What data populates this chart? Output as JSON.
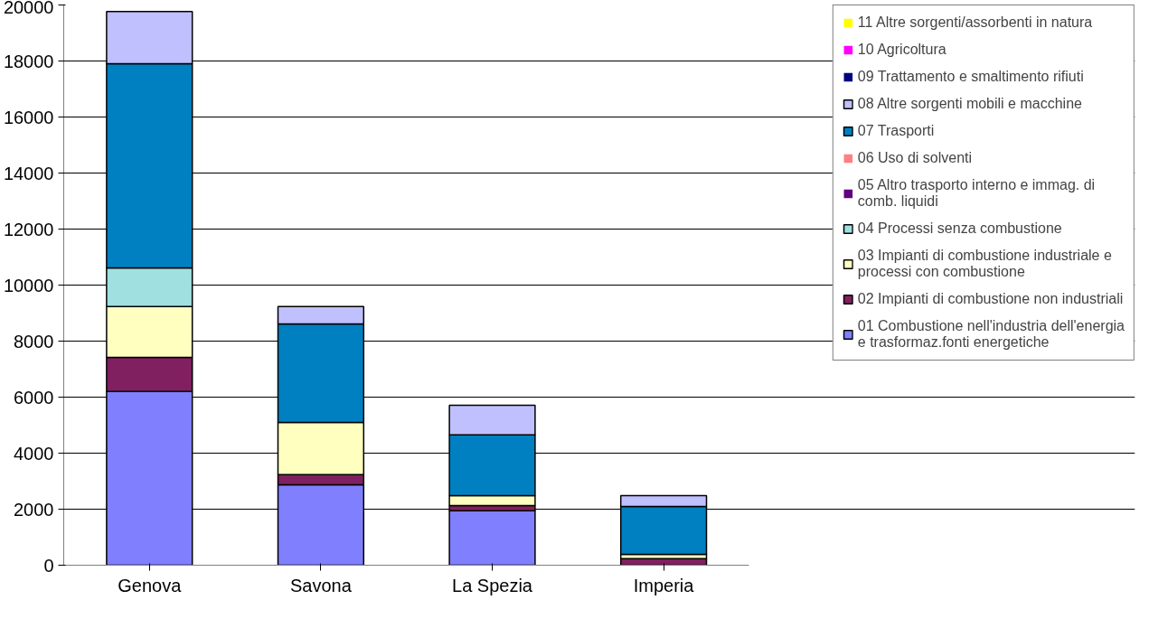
{
  "chart_data": {
    "type": "bar",
    "stacked": true,
    "categories": [
      "Genova",
      "Savona",
      "La Spezia",
      "Imperia"
    ],
    "series": [
      {
        "name": "01 Combustione nell'industria dell'energia e trasformaz.fonti energetiche",
        "color": "#8080ff",
        "values": [
          6200,
          2870,
          1940,
          0
        ]
      },
      {
        "name": "02 Impianti di combustione non industriali",
        "color": "#802060",
        "values": [
          1220,
          360,
          190,
          230
        ]
      },
      {
        "name": "03 Impianti di combustione industriale e processi con combustione",
        "color": "#ffffc0",
        "values": [
          1810,
          1870,
          350,
          160
        ]
      },
      {
        "name": "04 Processi senza combustione",
        "color": "#a0e0e0",
        "values": [
          1380,
          0,
          0,
          0
        ]
      },
      {
        "name": "05 Altro trasporto interno e immag. di comb. liquidi",
        "color": "#600080",
        "values": [
          0,
          0,
          0,
          0
        ]
      },
      {
        "name": "06 Uso di solventi",
        "color": "#ff8080",
        "values": [
          0,
          0,
          0,
          0
        ]
      },
      {
        "name": "07 Trasporti",
        "color": "#0080c0",
        "values": [
          7290,
          3510,
          2170,
          1710
        ]
      },
      {
        "name": "08 Altre sorgenti mobili e macchine",
        "color": "#c0c0ff",
        "values": [
          1870,
          620,
          1060,
          380
        ]
      },
      {
        "name": "09 Trattamento e smaltimento rifiuti",
        "color": "#000080",
        "values": [
          0,
          0,
          0,
          0
        ]
      },
      {
        "name": "10 Agricoltura",
        "color": "#ff00ff",
        "values": [
          0,
          0,
          0,
          0
        ]
      },
      {
        "name": "11 Altre sorgenti/assorbenti in natura",
        "color": "#ffff00",
        "values": [
          0,
          0,
          0,
          0
        ]
      }
    ],
    "ylim": [
      0,
      20000
    ],
    "yticks": [
      0,
      2000,
      4000,
      6000,
      8000,
      10000,
      12000,
      14000,
      16000,
      18000,
      20000
    ],
    "grid": "y",
    "legend": "right"
  }
}
